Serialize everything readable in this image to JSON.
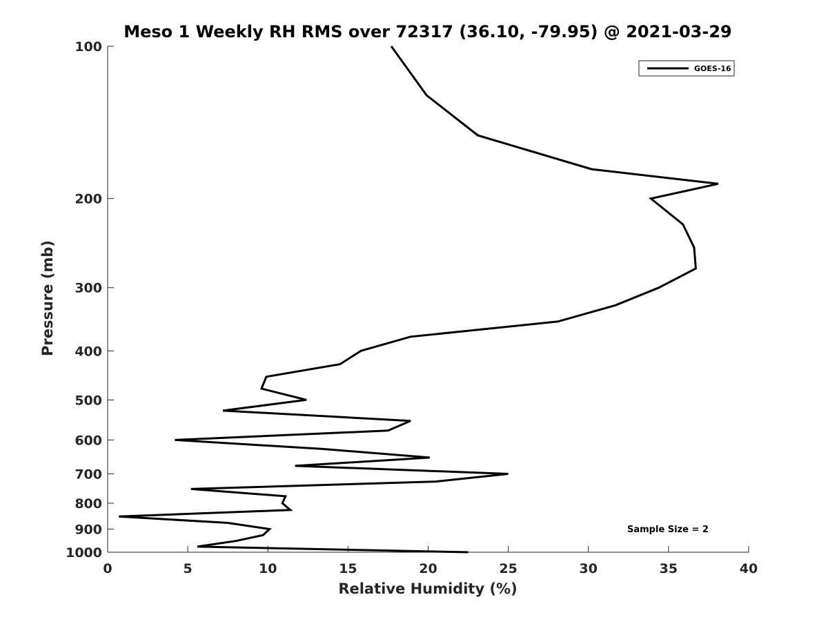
{
  "chart_data": {
    "type": "line",
    "title": "Meso 1 Weekly RH RMS over 72317 (36.10, -79.95) @ 2021-03-29",
    "xlabel": "Relative Humidity (%)",
    "ylabel": "Pressure (mb)",
    "xlim": [
      0,
      40
    ],
    "ylim": [
      100,
      1000
    ],
    "y_scale": "log",
    "y_reversed": true,
    "x_ticks": [
      0,
      5,
      10,
      15,
      20,
      25,
      30,
      35,
      40
    ],
    "y_ticks": [
      100,
      200,
      300,
      400,
      500,
      600,
      700,
      800,
      900,
      1000
    ],
    "grid": false,
    "legend_position": "top-right",
    "annotation": "Sample Size = 2",
    "series": [
      {
        "name": "GOES-16",
        "color": "#000000",
        "points": [
          {
            "x": 17.7,
            "y": 100
          },
          {
            "x": 19.9,
            "y": 125
          },
          {
            "x": 23.1,
            "y": 150
          },
          {
            "x": 30.2,
            "y": 175
          },
          {
            "x": 38.1,
            "y": 187
          },
          {
            "x": 33.9,
            "y": 200
          },
          {
            "x": 35.9,
            "y": 225
          },
          {
            "x": 36.6,
            "y": 250
          },
          {
            "x": 36.7,
            "y": 275
          },
          {
            "x": 34.4,
            "y": 300
          },
          {
            "x": 31.7,
            "y": 325
          },
          {
            "x": 28.1,
            "y": 350
          },
          {
            "x": 18.9,
            "y": 375
          },
          {
            "x": 15.8,
            "y": 400
          },
          {
            "x": 14.5,
            "y": 425
          },
          {
            "x": 9.9,
            "y": 450
          },
          {
            "x": 9.6,
            "y": 475
          },
          {
            "x": 12.4,
            "y": 500
          },
          {
            "x": 7.2,
            "y": 525
          },
          {
            "x": 18.9,
            "y": 550
          },
          {
            "x": 17.5,
            "y": 575
          },
          {
            "x": 4.2,
            "y": 600
          },
          {
            "x": 13.4,
            "y": 625
          },
          {
            "x": 20.1,
            "y": 650
          },
          {
            "x": 11.7,
            "y": 675
          },
          {
            "x": 25.0,
            "y": 700
          },
          {
            "x": 20.5,
            "y": 725
          },
          {
            "x": 5.2,
            "y": 750
          },
          {
            "x": 11.1,
            "y": 775
          },
          {
            "x": 10.9,
            "y": 800
          },
          {
            "x": 11.4,
            "y": 825
          },
          {
            "x": 0.7,
            "y": 850
          },
          {
            "x": 7.5,
            "y": 875
          },
          {
            "x": 10.1,
            "y": 900
          },
          {
            "x": 9.7,
            "y": 925
          },
          {
            "x": 8.0,
            "y": 950
          },
          {
            "x": 5.6,
            "y": 975
          },
          {
            "x": 22.5,
            "y": 1000
          }
        ]
      }
    ]
  }
}
